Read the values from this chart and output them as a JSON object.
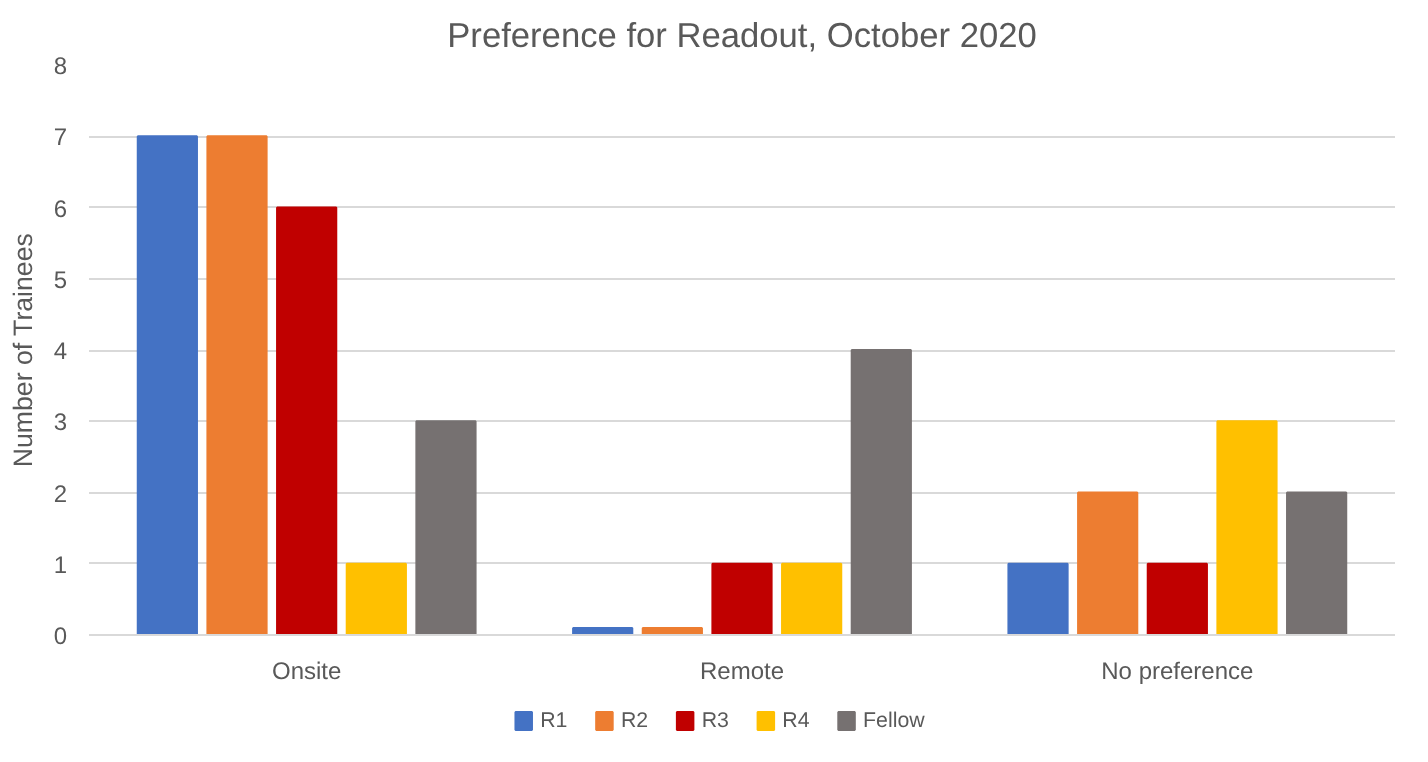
{
  "chart_data": {
    "type": "bar",
    "title": "Preference for Readout, October 2020",
    "ylabel": "Number of Trainees",
    "categories": [
      "Onsite",
      "Remote",
      "No preference"
    ],
    "series": [
      {
        "name": "R1",
        "color": "#4472c4",
        "values": [
          7,
          0.1,
          1
        ]
      },
      {
        "name": "R2",
        "color": "#ed7d31",
        "values": [
          7,
          0.1,
          2
        ]
      },
      {
        "name": "R3",
        "color": "#c00000",
        "values": [
          6,
          1,
          1
        ]
      },
      {
        "name": "R4",
        "color": "#ffc000",
        "values": [
          1,
          1,
          3
        ]
      },
      {
        "name": "Fellow",
        "color": "#767171",
        "values": [
          3,
          4,
          2
        ]
      }
    ],
    "ylim": [
      0,
      8
    ],
    "yticks": [
      0,
      1,
      2,
      3,
      4,
      5,
      6,
      7,
      8
    ],
    "grid": "y",
    "legend": "bottom"
  }
}
